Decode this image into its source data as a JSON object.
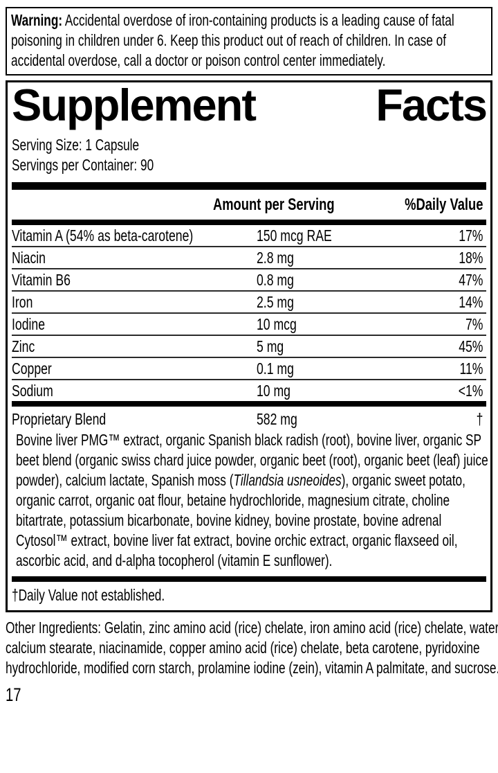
{
  "colors": {
    "ink": "#000000",
    "paper": "#ffffff"
  },
  "warning": {
    "label": "Warning:",
    "text": "Accidental overdose of iron-containing products is a leading cause of fatal poisoning in children under 6. Keep this product out of reach of children. In case of accidental overdose, call a doctor or poison control center immediately."
  },
  "supplement_facts": {
    "title_word1": "Supplement",
    "title_word2": "Facts",
    "serving_size": "Serving Size: 1 Capsule",
    "servings_per_container": "Servings per Container: 90",
    "columns": {
      "amount": "Amount per Serving",
      "daily_value": "%Daily Value"
    },
    "nutrients": [
      {
        "name": "Vitamin A (54% as beta-carotene)",
        "amount": "150 mcg RAE",
        "dv": "17%"
      },
      {
        "name": "Niacin",
        "amount": "2.8 mg",
        "dv": "18%"
      },
      {
        "name": "Vitamin B6",
        "amount": "0.8 mg",
        "dv": "47%"
      },
      {
        "name": "Iron",
        "amount": "2.5 mg",
        "dv": "14%"
      },
      {
        "name": "Iodine",
        "amount": "10 mcg",
        "dv": "7%"
      },
      {
        "name": "Zinc",
        "amount": "5 mg",
        "dv": "45%"
      },
      {
        "name": "Copper",
        "amount": "0.1 mg",
        "dv": "11%"
      },
      {
        "name": "Sodium",
        "amount": "10 mg",
        "dv": "<1%"
      }
    ],
    "proprietary_blend": {
      "name": "Proprietary Blend",
      "amount": "582 mg",
      "dv": "†",
      "description_before_italic": "Bovine liver PMG™ extract, organic Spanish black radish (root), bovine liver, organic SP beet blend (organic swiss chard juice powder, organic beet (root), organic beet (leaf) juice powder), calcium lactate, Spanish moss (",
      "description_italic": "Tillandsia usneoides",
      "description_after_italic": "), organic sweet potato, organic carrot, organic oat flour, betaine hydrochloride, magnesium citrate, choline bitartrate, potassium bicarbonate, bovine kidney, bovine prostate, bovine adrenal Cytosol™ extract, bovine liver fat extract, bovine orchic extract, organic flaxseed oil, ascorbic acid, and d-alpha tocopherol (vitamin E sunflower)."
    },
    "footnote": "†Daily Value not established."
  },
  "other_ingredients": "Other Ingredients: Gelatin, zinc amino acid (rice) chelate, iron amino acid (rice) chelate, water, calcium stearate, niacinamide, copper amino acid (rice) chelate, beta carotene, pyridoxine hydrochloride, modified corn starch, prolamine iodine (zein), vitamin A palmitate, and sucrose.",
  "page_number": "17"
}
